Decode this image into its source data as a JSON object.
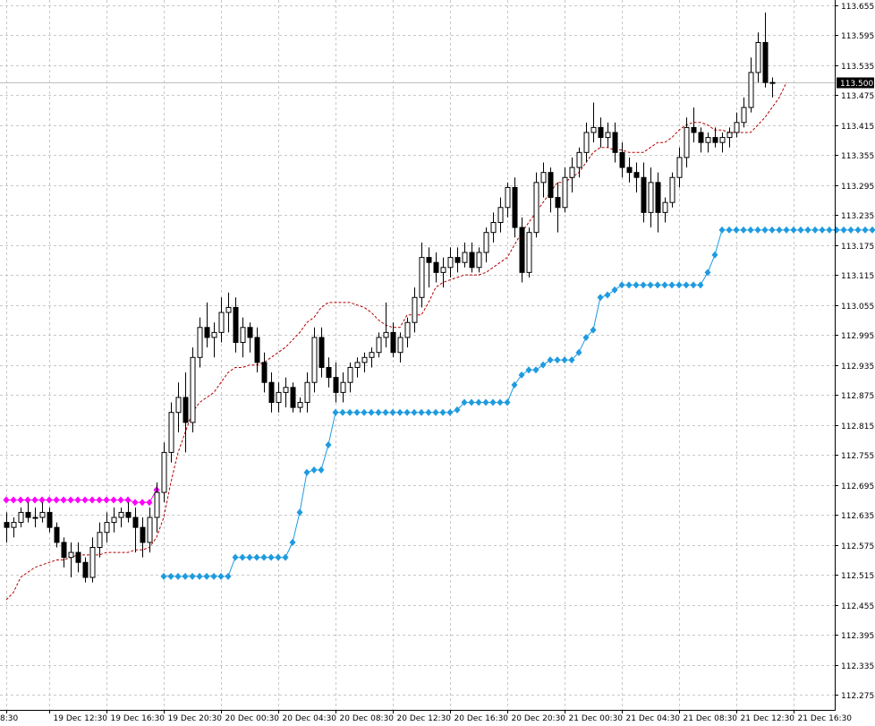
{
  "chart_data": {
    "type": "candlestick",
    "y_range": [
      112.245,
      113.665
    ],
    "y_ticks": [
      "113.655",
      "113.595",
      "113.535",
      "113.475",
      "113.415",
      "113.355",
      "113.295",
      "113.235",
      "113.175",
      "113.115",
      "113.055",
      "112.995",
      "112.935",
      "112.875",
      "112.815",
      "112.755",
      "112.695",
      "112.635",
      "112.575",
      "112.515",
      "112.455",
      "112.395",
      "112.335",
      "112.275"
    ],
    "x_tick_labels": [
      {
        "index": 0,
        "label": "8:30"
      },
      {
        "index": 6,
        "label": "19 Dec 12:30"
      },
      {
        "index": 14,
        "label": "19 Dec 16:30"
      },
      {
        "index": 22,
        "label": "19 Dec 20:30"
      },
      {
        "index": 30,
        "label": "20 Dec 00:30"
      },
      {
        "index": 38,
        "label": "20 Dec 04:30"
      },
      {
        "index": 46,
        "label": "20 Dec 08:30"
      },
      {
        "index": 54,
        "label": "20 Dec 12:30"
      },
      {
        "index": 62,
        "label": "20 Dec 16:30"
      },
      {
        "index": 70,
        "label": "20 Dec 20:30"
      },
      {
        "index": 78,
        "label": "21 Dec 00:30"
      },
      {
        "index": 86,
        "label": "21 Dec 04:30"
      },
      {
        "index": 94,
        "label": "21 Dec 08:30"
      },
      {
        "index": 102,
        "label": "21 Dec 12:30"
      },
      {
        "index": 110,
        "label": "21 Dec 16:30"
      }
    ],
    "current_price": 113.5,
    "current_price_label": "113.500",
    "colors": {
      "bull_body": "#ffffff",
      "bear_body": "#000000",
      "wick": "#000000",
      "stop_up": "#1e9be0",
      "stop_down": "#ff00ff",
      "channel": "#b40000",
      "price_line": "#c0c0c0"
    },
    "candles": [
      [
        112.62,
        112.64,
        112.58,
        112.61
      ],
      [
        112.61,
        112.63,
        112.59,
        112.62
      ],
      [
        112.62,
        112.65,
        112.61,
        112.64
      ],
      [
        112.64,
        112.66,
        112.62,
        112.63
      ],
      [
        112.63,
        112.65,
        112.61,
        112.63
      ],
      [
        112.63,
        112.66,
        112.62,
        112.64
      ],
      [
        112.64,
        112.65,
        112.6,
        112.61
      ],
      [
        112.61,
        112.62,
        112.57,
        112.58
      ],
      [
        112.58,
        112.59,
        112.53,
        112.55
      ],
      [
        112.55,
        112.58,
        112.51,
        112.56
      ],
      [
        112.56,
        112.58,
        112.52,
        112.54
      ],
      [
        112.54,
        112.55,
        112.5,
        112.51
      ],
      [
        112.51,
        112.59,
        112.5,
        112.57
      ],
      [
        112.57,
        112.62,
        112.55,
        112.6
      ],
      [
        112.6,
        112.64,
        112.58,
        112.62
      ],
      [
        112.62,
        112.65,
        112.6,
        112.63
      ],
      [
        112.63,
        112.65,
        112.61,
        112.64
      ],
      [
        112.64,
        112.66,
        112.62,
        112.63
      ],
      [
        112.63,
        112.65,
        112.56,
        112.61
      ],
      [
        112.61,
        112.63,
        112.55,
        112.58
      ],
      [
        112.58,
        112.65,
        112.56,
        112.63
      ],
      [
        112.63,
        112.7,
        112.6,
        112.68
      ],
      [
        112.68,
        112.78,
        112.66,
        112.76
      ],
      [
        112.76,
        112.86,
        112.74,
        112.84
      ],
      [
        112.84,
        112.9,
        112.8,
        112.87
      ],
      [
        112.87,
        112.92,
        112.76,
        112.82
      ],
      [
        112.82,
        112.97,
        112.8,
        112.95
      ],
      [
        112.95,
        113.03,
        112.93,
        113.01
      ],
      [
        113.01,
        113.06,
        112.97,
        112.99
      ],
      [
        112.99,
        113.02,
        112.95,
        113.0
      ],
      [
        113.0,
        113.07,
        112.98,
        113.04
      ],
      [
        113.04,
        113.08,
        113.0,
        113.05
      ],
      [
        113.05,
        113.07,
        112.96,
        112.98
      ],
      [
        112.98,
        113.03,
        112.95,
        113.01
      ],
      [
        113.01,
        113.02,
        112.96,
        112.99
      ],
      [
        112.99,
        113.01,
        112.92,
        112.94
      ],
      [
        112.94,
        112.96,
        112.88,
        112.9
      ],
      [
        112.9,
        112.92,
        112.84,
        112.86
      ],
      [
        112.86,
        112.9,
        112.84,
        112.88
      ],
      [
        112.88,
        112.91,
        112.85,
        112.89
      ],
      [
        112.89,
        112.9,
        112.84,
        112.85
      ],
      [
        112.85,
        112.87,
        112.84,
        112.86
      ],
      [
        112.86,
        112.92,
        112.84,
        112.9
      ],
      [
        112.9,
        113.01,
        112.88,
        112.99
      ],
      [
        112.99,
        113.01,
        112.91,
        112.93
      ],
      [
        112.93,
        112.95,
        112.89,
        112.91
      ],
      [
        112.91,
        112.94,
        112.86,
        112.88
      ],
      [
        112.88,
        112.92,
        112.86,
        112.9
      ],
      [
        112.9,
        112.94,
        112.88,
        112.93
      ],
      [
        112.93,
        112.95,
        112.91,
        112.94
      ],
      [
        112.94,
        112.96,
        112.92,
        112.95
      ],
      [
        112.95,
        112.97,
        112.93,
        112.96
      ],
      [
        112.96,
        113.0,
        112.95,
        112.99
      ],
      [
        112.99,
        113.06,
        112.97,
        113.0
      ],
      [
        113.0,
        113.02,
        112.95,
        112.96
      ],
      [
        112.96,
        113.0,
        112.94,
        112.99
      ],
      [
        112.99,
        113.03,
        112.97,
        113.02
      ],
      [
        113.02,
        113.09,
        113.0,
        113.07
      ],
      [
        113.07,
        113.18,
        113.05,
        113.15
      ],
      [
        113.15,
        113.17,
        113.09,
        113.14
      ],
      [
        113.14,
        113.16,
        113.1,
        113.12
      ],
      [
        113.12,
        113.15,
        113.09,
        113.13
      ],
      [
        113.13,
        113.17,
        113.11,
        113.15
      ],
      [
        113.15,
        113.17,
        113.12,
        113.14
      ],
      [
        113.14,
        113.18,
        113.13,
        113.16
      ],
      [
        113.16,
        113.18,
        113.12,
        113.13
      ],
      [
        113.13,
        113.17,
        113.12,
        113.16
      ],
      [
        113.16,
        113.21,
        113.14,
        113.2
      ],
      [
        113.2,
        113.24,
        113.18,
        113.22
      ],
      [
        113.22,
        113.27,
        113.2,
        113.25
      ],
      [
        113.25,
        113.3,
        113.23,
        113.29
      ],
      [
        113.29,
        113.31,
        113.19,
        113.21
      ],
      [
        113.21,
        113.23,
        113.1,
        113.12
      ],
      [
        113.12,
        113.21,
        113.11,
        113.2
      ],
      [
        113.2,
        113.32,
        113.19,
        113.3
      ],
      [
        113.3,
        113.34,
        113.27,
        113.32
      ],
      [
        113.32,
        113.33,
        113.24,
        113.27
      ],
      [
        113.27,
        113.3,
        113.2,
        113.25
      ],
      [
        113.25,
        113.33,
        113.24,
        113.31
      ],
      [
        113.31,
        113.35,
        113.28,
        113.33
      ],
      [
        113.33,
        113.37,
        113.31,
        113.36
      ],
      [
        113.36,
        113.42,
        113.34,
        113.4
      ],
      [
        113.4,
        113.46,
        113.38,
        113.41
      ],
      [
        113.41,
        113.43,
        113.37,
        113.39
      ],
      [
        113.39,
        113.42,
        113.37,
        113.4
      ],
      [
        113.4,
        113.42,
        113.34,
        113.36
      ],
      [
        113.36,
        113.38,
        113.31,
        113.33
      ],
      [
        113.33,
        113.35,
        113.3,
        113.32
      ],
      [
        113.32,
        113.34,
        113.28,
        113.31
      ],
      [
        113.31,
        113.34,
        113.22,
        113.24
      ],
      [
        113.24,
        113.33,
        113.21,
        113.3
      ],
      [
        113.3,
        113.32,
        113.2,
        113.24
      ],
      [
        113.24,
        113.27,
        113.22,
        113.26
      ],
      [
        113.26,
        113.32,
        113.25,
        113.31
      ],
      [
        113.31,
        113.37,
        113.29,
        113.35
      ],
      [
        113.35,
        113.43,
        113.33,
        113.41
      ],
      [
        113.41,
        113.45,
        113.38,
        113.4
      ],
      [
        113.4,
        113.41,
        113.36,
        113.38
      ],
      [
        113.38,
        113.4,
        113.36,
        113.39
      ],
      [
        113.39,
        113.41,
        113.37,
        113.38
      ],
      [
        113.38,
        113.4,
        113.36,
        113.39
      ],
      [
        113.39,
        113.41,
        113.37,
        113.4
      ],
      [
        113.4,
        113.44,
        113.39,
        113.42
      ],
      [
        113.42,
        113.47,
        113.41,
        113.45
      ],
      [
        113.45,
        113.55,
        113.44,
        113.52
      ],
      [
        113.52,
        113.6,
        113.5,
        113.58
      ],
      [
        113.58,
        113.64,
        113.49,
        113.5
      ],
      [
        113.5,
        113.51,
        113.47,
        113.5
      ]
    ],
    "upper_stop": [
      112.665,
      112.665,
      112.665,
      112.665,
      112.665,
      112.665,
      112.665,
      112.665,
      112.665,
      112.665,
      112.665,
      112.665,
      112.665,
      112.665,
      112.665,
      112.665,
      112.665,
      112.665,
      112.66,
      112.66,
      112.66,
      112.685
    ],
    "lower_stop": [
      112.512,
      112.512,
      112.512,
      112.512,
      112.512,
      112.512,
      112.512,
      112.512,
      112.512,
      112.512,
      112.55,
      112.55,
      112.55,
      112.55,
      112.55,
      112.55,
      112.55,
      112.55,
      112.58,
      112.64,
      112.72,
      112.725,
      112.725,
      112.775,
      112.84,
      112.84,
      112.84,
      112.84,
      112.84,
      112.84,
      112.84,
      112.84,
      112.84,
      112.84,
      112.84,
      112.84,
      112.84,
      112.84,
      112.84,
      112.84,
      112.84,
      112.845,
      112.86,
      112.86,
      112.86,
      112.86,
      112.86,
      112.86,
      112.86,
      112.895,
      112.915,
      112.925,
      112.925,
      112.935,
      112.945,
      112.945,
      112.945,
      112.945,
      112.96,
      112.99,
      113.005,
      113.07,
      113.075,
      113.085,
      113.095,
      113.095,
      113.095,
      113.095,
      113.095,
      113.095,
      113.095,
      113.095,
      113.095,
      113.095,
      113.095,
      113.095,
      113.12,
      113.155,
      113.205,
      113.205,
      113.205,
      113.205,
      113.205,
      113.205,
      113.205,
      113.205,
      113.205,
      113.205,
      113.205,
      113.205,
      113.205,
      113.205,
      113.205,
      113.205,
      113.205,
      113.205,
      113.205,
      113.205,
      113.205,
      113.205,
      113.205,
      113.205,
      113.205
    ],
    "channel_line": [
      112.465,
      112.48,
      112.51,
      112.52,
      112.53,
      112.535,
      112.54,
      112.545,
      112.545,
      112.55,
      112.555,
      112.555,
      112.555,
      112.555,
      112.56,
      112.56,
      112.56,
      112.56,
      112.565,
      112.565,
      112.57,
      112.59,
      112.63,
      112.7,
      112.76,
      112.8,
      112.84,
      112.86,
      112.87,
      112.88,
      112.9,
      112.92,
      112.93,
      112.93,
      112.935,
      112.935,
      112.94,
      112.95,
      112.96,
      112.97,
      112.985,
      113.0,
      113.02,
      113.03,
      113.05,
      113.06,
      113.06,
      113.06,
      113.06,
      113.055,
      113.05,
      113.04,
      113.025,
      113.015,
      113.01,
      113.01,
      113.035,
      113.035,
      113.035,
      113.06,
      113.09,
      113.1,
      113.105,
      113.11,
      113.115,
      113.115,
      113.115,
      113.12,
      113.13,
      113.14,
      113.15,
      113.175,
      113.2,
      113.22,
      113.24,
      113.26,
      113.28,
      113.3,
      113.3,
      113.31,
      113.32,
      113.34,
      113.36,
      113.37,
      113.37,
      113.365,
      113.365,
      113.36,
      113.36,
      113.36,
      113.37,
      113.38,
      113.38,
      113.39,
      113.405,
      113.415,
      113.42,
      113.42,
      113.415,
      113.405,
      113.405,
      113.4,
      113.4,
      113.4,
      113.4,
      113.415,
      113.43,
      113.45,
      113.47,
      113.5
    ]
  }
}
